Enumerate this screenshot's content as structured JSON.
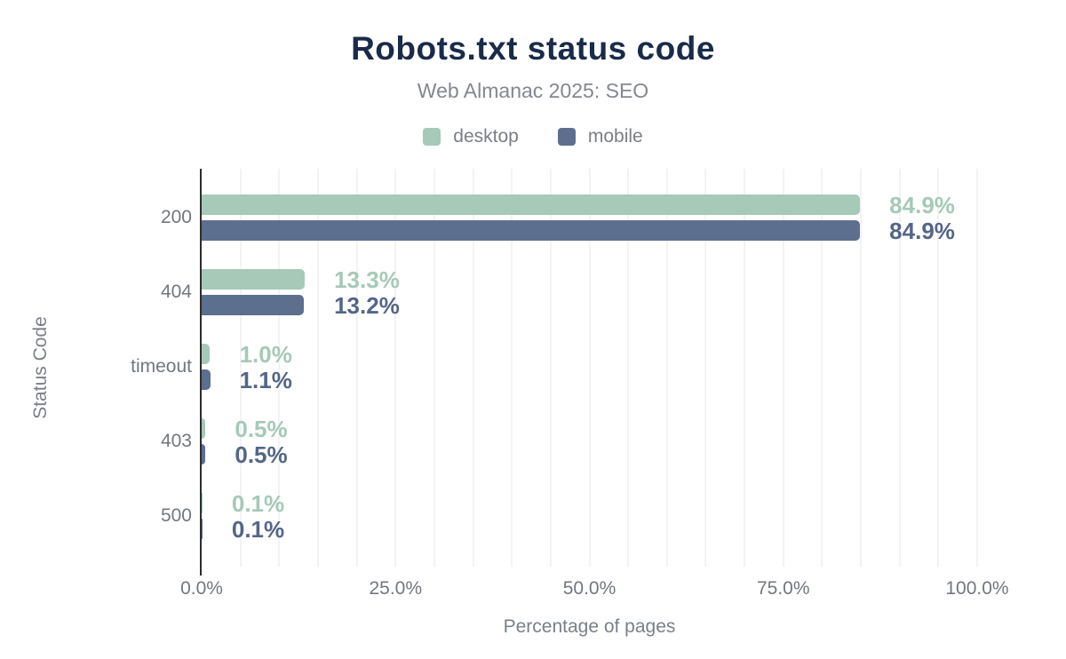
{
  "chart_data": {
    "type": "bar",
    "orientation": "horizontal",
    "title": "Robots.txt status code",
    "subtitle": "Web Almanac 2025: SEO",
    "xlabel": "Percentage of pages",
    "ylabel": "Status Code",
    "xlim": [
      0,
      100
    ],
    "grid": "vertical minor gridlines every 5%",
    "legend_position": "top",
    "categories": [
      "200",
      "404",
      "timeout",
      "403",
      "500"
    ],
    "series": [
      {
        "name": "desktop",
        "color": "#a6c9b8",
        "label_color": "#a6c9b8",
        "values": [
          84.9,
          13.3,
          1.0,
          0.5,
          0.1
        ],
        "data_labels": [
          "84.9%",
          "13.3%",
          "1.0%",
          "0.5%",
          "0.1%"
        ]
      },
      {
        "name": "mobile",
        "color": "#5d6f8f",
        "label_color": "#546687",
        "values": [
          84.9,
          13.2,
          1.1,
          0.5,
          0.1
        ],
        "data_labels": [
          "84.9%",
          "13.2%",
          "1.1%",
          "0.5%",
          "0.1%"
        ]
      }
    ],
    "x_ticks": [
      {
        "label": "0.0%",
        "value": 0
      },
      {
        "label": "25.0%",
        "value": 25
      },
      {
        "label": "50.0%",
        "value": 50
      },
      {
        "label": "75.0%",
        "value": 75
      },
      {
        "label": "100.0%",
        "value": 100
      }
    ],
    "colors": {
      "title": "#1a2b49",
      "subtitle": "#84888e",
      "axis_text": "#73777d",
      "axis_line": "#2d2d2d",
      "gridline": "#f3f3f5"
    }
  }
}
